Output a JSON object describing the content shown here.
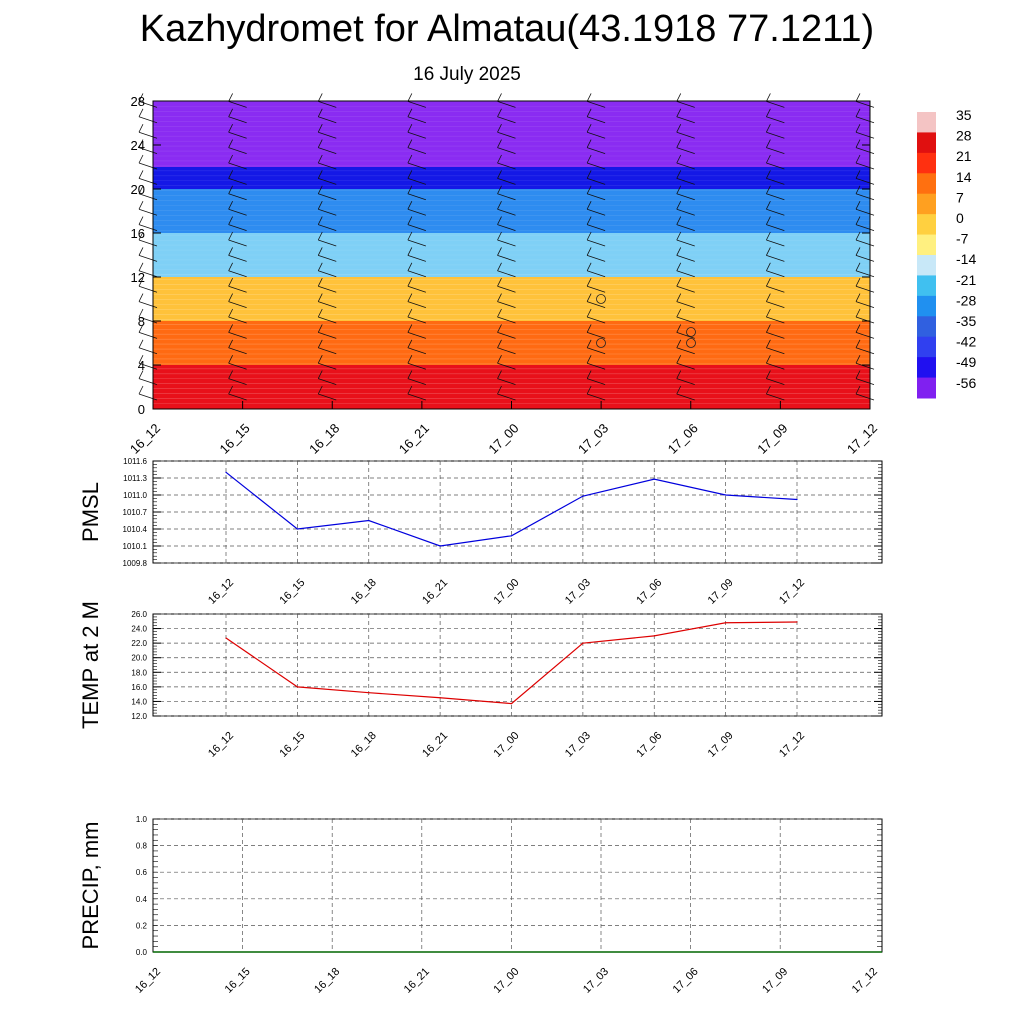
{
  "title": "Kazhydromet for Almatau(43.1918 77.1211)",
  "subtitle": "16 July 2025",
  "chart_data": [
    {
      "type": "heatmap",
      "title": "",
      "ylim": [
        0,
        28
      ],
      "yticks": [
        "0",
        "4",
        "8",
        "12",
        "16",
        "20",
        "24",
        "28"
      ],
      "xticks": [
        "16_12",
        "16_15",
        "16_18",
        "16_21",
        "17_00",
        "17_03",
        "17_06",
        "17_09",
        "17_12"
      ],
      "description_values": "temperature cross-section with wind barbs",
      "colorbar": {
        "labels": [
          "35",
          "28",
          "21",
          "14",
          "7",
          "0",
          "-7",
          "-14",
          "-21",
          "-28",
          "-35",
          "-42",
          "-49",
          "-56"
        ],
        "colors": [
          "#f4c4c4",
          "#e01010",
          "#ff3010",
          "#ff7010",
          "#ffa020",
          "#ffd040",
          "#fff080",
          "#c8e8f8",
          "#40c0f0",
          "#2090f0",
          "#3060e0",
          "#3040f0",
          "#2010f0",
          "#8020f0"
        ]
      },
      "bands": [
        {
          "from": 0,
          "to": 4,
          "color": "#e8101a"
        },
        {
          "from": 4,
          "to": 8,
          "color": "#ff6a12"
        },
        {
          "from": 8,
          "to": 12,
          "color": "#ffc23a"
        },
        {
          "from": 12,
          "to": 16,
          "color": "#7fd0f6"
        },
        {
          "from": 16,
          "to": 20,
          "color": "#2e8cf0"
        },
        {
          "from": 20,
          "to": 22,
          "color": "#1418e6"
        },
        {
          "from": 22,
          "to": 28,
          "color": "#8a2cf2"
        }
      ]
    },
    {
      "type": "line",
      "ylabel": "PMSL",
      "ylim": [
        1009.8,
        1011.6
      ],
      "yticks": [
        "1009.8",
        "1010.1",
        "1010.4",
        "1010.7",
        "1011.0",
        "1011.3",
        "1011.6"
      ],
      "categories": [
        "16_12",
        "16_15",
        "16_18",
        "16_21",
        "17_00",
        "17_03",
        "17_06",
        "17_09",
        "17_12"
      ],
      "series": [
        {
          "color": "#0000dd",
          "values": [
            1011.4,
            1010.4,
            1010.55,
            1010.1,
            1010.28,
            1010.98,
            1011.28,
            1011.0,
            1010.92
          ]
        }
      ]
    },
    {
      "type": "line",
      "ylabel": "TEMP at 2 M",
      "ylim": [
        12.0,
        26.0
      ],
      "yticks": [
        "12.0",
        "14.0",
        "16.0",
        "18.0",
        "20.0",
        "22.0",
        "24.0",
        "26.0"
      ],
      "categories": [
        "16_12",
        "16_15",
        "16_18",
        "16_21",
        "17_00",
        "17_03",
        "17_06",
        "17_09",
        "17_12"
      ],
      "series": [
        {
          "color": "#dd0000",
          "values": [
            22.7,
            16.0,
            15.2,
            14.5,
            13.7,
            22.0,
            23.0,
            24.8,
            24.9
          ]
        }
      ]
    },
    {
      "type": "line",
      "ylabel": "PRECIP, mm",
      "ylim": [
        0.0,
        1.0
      ],
      "yticks": [
        "0.0",
        "0.2",
        "0.4",
        "0.6",
        "0.8",
        "1.0"
      ],
      "xticks": [
        "16_12",
        "16_15",
        "16_18",
        "16_21",
        "17_00",
        "17_03",
        "17_06",
        "17_09",
        "17_12"
      ],
      "series": [
        {
          "color": "#006600",
          "values": [
            0,
            0,
            0,
            0,
            0,
            0,
            0,
            0,
            0
          ]
        }
      ]
    }
  ]
}
